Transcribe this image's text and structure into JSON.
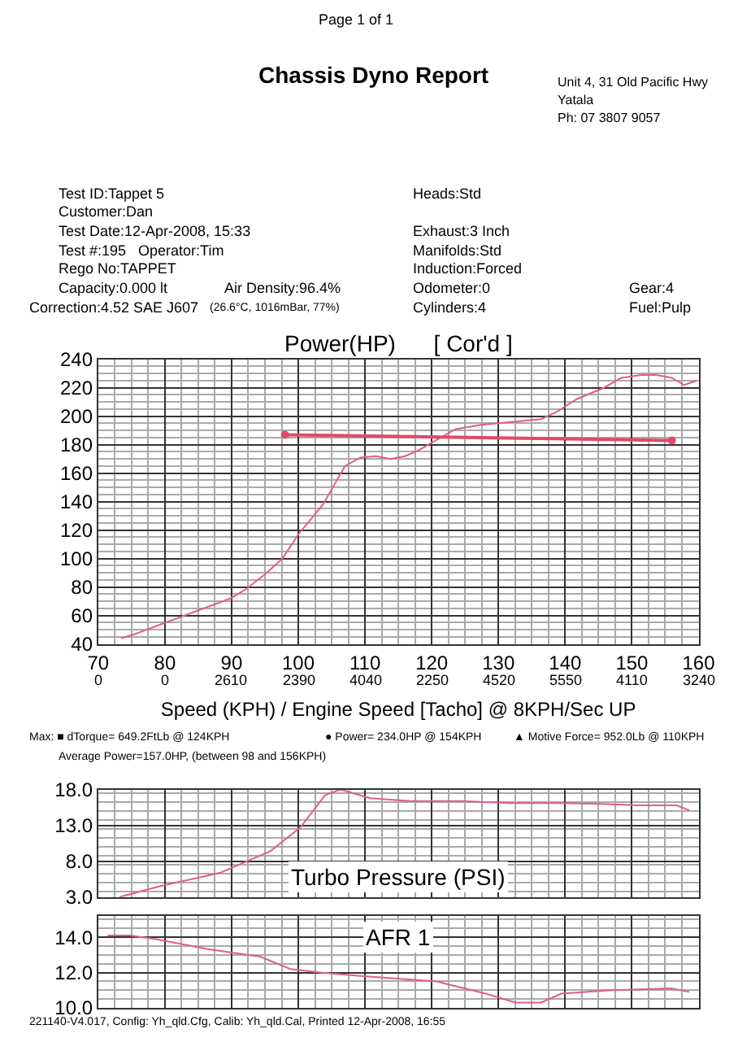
{
  "chart_data": [
    {
      "type": "other",
      "title": "Chassis Dyno Report",
      "annotations": [
        "Page 1 of 1",
        "Unit 4, 31 Old Pacific Hwy",
        "Yatala",
        "Ph: 07 3807 9057",
        "Test ID:Tappet 5",
        "Customer:Dan",
        "Test Date:12-Apr-2008, 15:33",
        "Test #:195   Operator:Tim",
        "Rego No:TAPPET",
        "Capacity:0.000 lt",
        "Air Density:96.4%",
        "Correction:4.52 SAE J607",
        "(26.6°C, 1016mBar, 77%)",
        "Heads:Std",
        "Exhaust:3 Inch",
        "Manifolds:Std",
        "Induction:Forced",
        "Odometer:0",
        "Cylinders:4",
        "Gear:4",
        "Fuel:Pulp"
      ]
    },
    {
      "type": "line",
      "title": "Power(HP)      [ Cor'd ]",
      "xlabel": "Speed (KPH) / Engine Speed [Tacho] @ 8KPH/Sec UP",
      "xlim": [
        70,
        160
      ],
      "ylim": [
        40,
        240
      ],
      "grid": true,
      "marker": "none",
      "line_style": "solid",
      "xticks": [
        70,
        80,
        90,
        100,
        110,
        120,
        130,
        140,
        150,
        160
      ],
      "yticks": [
        40,
        60,
        80,
        100,
        120,
        140,
        160,
        180,
        200,
        220,
        240
      ],
      "series": [
        {
          "color": "#e06080",
          "x": [
            73.4,
            75.5,
            89.8,
            92,
            95,
            97.6,
            100,
            103.7,
            107,
            109.3,
            111.6,
            113.8,
            116,
            118,
            120.6,
            123.6,
            127.4,
            131.9,
            136.4,
            138.7,
            141.7,
            145.8,
            148.4,
            151.4,
            153.7,
            156,
            157.8,
            159.7
          ],
          "values": [
            44,
            47,
            72,
            78,
            89,
            100,
            117,
            138,
            165,
            171,
            172,
            170,
            172,
            176,
            183,
            191,
            194,
            196,
            198,
            203,
            212,
            220,
            227,
            229,
            229,
            227,
            222,
            225
          ]
        },
        {
          "color": "#e04a6a",
          "marker": "circle",
          "x": [
            98,
            156
          ],
          "values": [
            187,
            183
          ]
        }
      ],
      "annotations": [
        "Max: ■ dTorque= 649.2FtLb @ 124KPH",
        "● Power= 234.0HP @ 154KPH",
        "▲ Motive Force= 952.0Lb @ 110KPH",
        "Average Power=157.0HP, (between 98 and 156KPH)",
        "0",
        "0",
        "2610",
        "2390",
        "4040",
        "2250",
        "4520",
        "5550",
        "4110",
        "3240"
      ]
    },
    {
      "type": "line",
      "title": "Turbo Pressure (PSI)",
      "xlim": [
        70,
        160
      ],
      "ylim": [
        3,
        18
      ],
      "grid": true,
      "tick_labels": "y",
      "marker": "none",
      "xticks": [
        70,
        80,
        90,
        100,
        110,
        120,
        130,
        140,
        150,
        160
      ],
      "yticks": [
        {
          "value": 3,
          "label": "3.0"
        },
        {
          "value": 8,
          "label": "8.0"
        },
        {
          "value": 13,
          "label": "13.0"
        },
        {
          "value": 18,
          "label": "18.0"
        }
      ],
      "series": [
        {
          "color": "#e06080",
          "x": [
            73.2,
            79.2,
            88.3,
            95.8,
            100.3,
            104,
            106.3,
            110.8,
            116.8,
            124.4,
            131.9,
            139.4,
            145.4,
            150.7,
            156.7,
            158.6
          ],
          "values": [
            3.0,
            4.5,
            6.4,
            9.4,
            12.7,
            17.2,
            18.0,
            16.8,
            16.4,
            16.4,
            16.1,
            16.1,
            16.0,
            15.8,
            15.8,
            15.1
          ]
        }
      ]
    },
    {
      "type": "line",
      "title": "AFR 1",
      "xlim": [
        70,
        160
      ],
      "ylim": [
        10,
        15.2
      ],
      "grid": true,
      "tick_labels": "y",
      "marker": "none",
      "xticks": [
        70,
        80,
        90,
        100,
        110,
        120,
        130,
        140,
        150,
        160
      ],
      "yticks": [
        {
          "value": 10,
          "label": "10.0"
        },
        {
          "value": 12,
          "label": "12.0"
        },
        {
          "value": 14,
          "label": "14.0"
        }
      ],
      "series": [
        {
          "color": "#e06080",
          "x": [
            71.4,
            74.7,
            78.5,
            86.8,
            94.3,
            98.8,
            103.3,
            109.3,
            120.6,
            128.1,
            132.6,
            136.4,
            139.4,
            146.9,
            155.9,
            158.6
          ],
          "values": [
            14.1,
            14.1,
            13.9,
            13.3,
            12.9,
            12.2,
            12.0,
            11.8,
            11.5,
            10.8,
            10.3,
            10.3,
            10.8,
            11.0,
            11.1,
            10.9
          ]
        }
      ],
      "annotations": [
        "221140-V4.017, Config: Yh_qld.Cfg, Calib: Yh_qld.Cal, Printed 12-Apr-2008, 16:55"
      ]
    }
  ]
}
